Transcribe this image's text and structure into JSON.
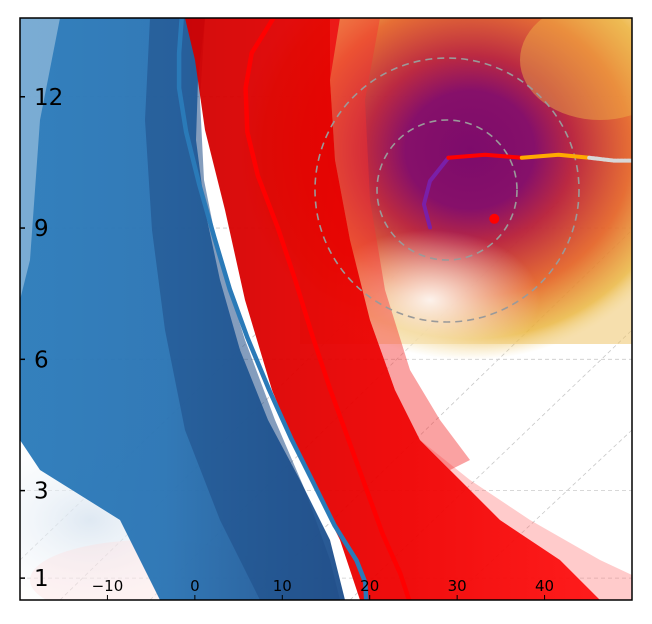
{
  "chart_data": {
    "type": "line",
    "title": "",
    "xlabel": "",
    "ylabel": "",
    "xlim": [
      -20,
      50
    ],
    "ylim": [
      0.5,
      13.8
    ],
    "x_ticks": [
      {
        "value": -10,
        "label": "−10"
      },
      {
        "value": 0,
        "label": "0"
      },
      {
        "value": 10,
        "label": "10"
      },
      {
        "value": 20,
        "label": "20"
      },
      {
        "value": 30,
        "label": "30"
      },
      {
        "value": 40,
        "label": "40"
      }
    ],
    "y_ticks": [
      {
        "value": 1,
        "label": "1"
      },
      {
        "value": 3,
        "label": "3"
      },
      {
        "value": 6,
        "label": "6"
      },
      {
        "value": 9,
        "label": "9"
      },
      {
        "value": 12,
        "label": "12"
      }
    ],
    "series": [
      {
        "color": "#2a7ab8",
        "points": [
          [
            -1.5,
            13.8
          ],
          [
            -1.8,
            13
          ],
          [
            -1.8,
            12.2
          ],
          [
            -1,
            11.2
          ],
          [
            0.5,
            10
          ],
          [
            2.2,
            8.8
          ],
          [
            4,
            7.6
          ],
          [
            6,
            6.5
          ],
          [
            8.5,
            5.3
          ],
          [
            11,
            4.2
          ],
          [
            13.5,
            3.2
          ],
          [
            16,
            2.2
          ],
          [
            18.5,
            1.4
          ],
          [
            19.5,
            0.9
          ],
          [
            19.6,
            0.5
          ]
        ]
      },
      {
        "color": "#ff0000",
        "points": [
          [
            9,
            13.8
          ],
          [
            6.5,
            13
          ],
          [
            5.8,
            12.2
          ],
          [
            6,
            11.2
          ],
          [
            7.2,
            10.2
          ],
          [
            9.5,
            9
          ],
          [
            11.5,
            7.8
          ],
          [
            13.5,
            6.5
          ],
          [
            15.5,
            5.3
          ],
          [
            17.5,
            4.2
          ],
          [
            19.5,
            3.1
          ],
          [
            21.5,
            2
          ],
          [
            23.5,
            1.1
          ],
          [
            24.5,
            0.5
          ]
        ]
      }
    ],
    "hodograph": {
      "center": [
        0.81,
        0.66
      ],
      "segments": [
        {
          "color": "#7a1fa8",
          "points": [
            [
              0.67,
              0.64
            ],
            [
              0.66,
              0.68
            ],
            [
              0.67,
              0.72
            ],
            [
              0.7,
              0.76
            ]
          ]
        },
        {
          "color": "#ff0000",
          "points": [
            [
              0.7,
              0.76
            ],
            [
              0.76,
              0.765
            ],
            [
              0.82,
              0.76
            ]
          ]
        },
        {
          "color": "#ffaa00",
          "points": [
            [
              0.82,
              0.76
            ],
            [
              0.88,
              0.765
            ],
            [
              0.93,
              0.76
            ]
          ]
        },
        {
          "color": "#d8d8d8",
          "points": [
            [
              0.93,
              0.76
            ],
            [
              0.97,
              0.755
            ],
            [
              1.0,
              0.755
            ]
          ]
        }
      ],
      "marker": {
        "color": "#ff0000",
        "point": [
          0.775,
          0.655
        ]
      }
    }
  }
}
